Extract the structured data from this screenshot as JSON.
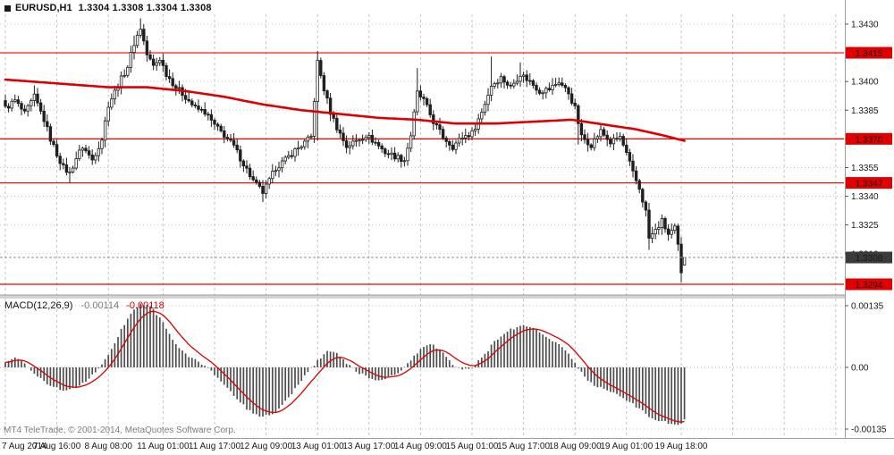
{
  "window": {
    "title": "EURUSD,H1",
    "ohlc": "1.3304 1.3308 1.3304 1.3308"
  },
  "indicator": {
    "label": "MACD(12,26,9)",
    "value_main": "-0.00114",
    "value_signal": "-0.00118"
  },
  "footer": {
    "copyright": "MT4 TeleTrade, © 2001-2014, MetaQuotes Software Corp."
  },
  "colors": {
    "background": "#ffffff",
    "grid": "#c4c4c4",
    "bull": "#ffffff",
    "bear": "#1f1f1f",
    "candle_outline": "#1f1f1f",
    "ma_line": "#dd0000",
    "level_line": "#f40000",
    "level_badge": "#e00000",
    "current_price_badge": "#3a3a3a",
    "bid_line": "#909090",
    "macd_histogram": "#4d4d4d",
    "macd_signal": "#dd0000",
    "separator": "#9e9e9e",
    "axis_text": "#1a1a1a"
  },
  "chart_data": {
    "type": "candlestick",
    "symbol": "EURUSD",
    "timeframe": "H1",
    "title": "EURUSD,H1 1.3304 1.3308 1.3304 1.3308",
    "current_ohlc": {
      "open": 1.3304,
      "high": 1.3308,
      "low": 1.3304,
      "close": 1.3308
    },
    "price_axis_ticks": [
      "1.3430",
      "1.3415",
      "1.3400",
      "1.3385",
      "1.3370",
      "1.3355",
      "1.3340",
      "1.3325",
      "1.3310"
    ],
    "levels": [
      {
        "value": 1.3415,
        "label": "1.3415"
      },
      {
        "value": 1.337,
        "label": "1.3370"
      },
      {
        "value": 1.3347,
        "label": "1.3347"
      },
      {
        "value": 1.3294,
        "label": "1.3294"
      }
    ],
    "current_price": {
      "value": 1.3308,
      "label": "1.3308"
    },
    "time_ticks": [
      {
        "bar": 0,
        "label": "7 Aug 2014"
      },
      {
        "bar": 16,
        "label": "7 Aug 16:00"
      },
      {
        "bar": 32,
        "label": "8 Aug 08:00"
      },
      {
        "bar": 49,
        "label": "11 Aug 01:00"
      },
      {
        "bar": 65,
        "label": "11 Aug 17:00"
      },
      {
        "bar": 81,
        "label": "12 Aug 09:00"
      },
      {
        "bar": 97,
        "label": "13 Aug 01:00"
      },
      {
        "bar": 113,
        "label": "13 Aug 17:00"
      },
      {
        "bar": 129,
        "label": "14 Aug 09:00"
      },
      {
        "bar": 145,
        "label": "15 Aug 01:00"
      },
      {
        "bar": 161,
        "label": "15 Aug 17:00"
      },
      {
        "bar": 177,
        "label": "18 Aug 09:00"
      },
      {
        "bar": 193,
        "label": "19 Aug 01:00"
      },
      {
        "bar": 210,
        "label": "19 Aug 18:00"
      }
    ],
    "future_grid_bars": [
      226,
      242,
      258
    ],
    "bars_total": 212,
    "close_anchors": [
      [
        0,
        1.3386
      ],
      [
        3,
        1.339
      ],
      [
        6,
        1.3383
      ],
      [
        9,
        1.3392
      ],
      [
        12,
        1.338
      ],
      [
        14,
        1.337
      ],
      [
        16,
        1.3362
      ],
      [
        18,
        1.3355
      ],
      [
        20,
        1.3352
      ],
      [
        22,
        1.336
      ],
      [
        24,
        1.3366
      ],
      [
        27,
        1.3359
      ],
      [
        30,
        1.337
      ],
      [
        32,
        1.3388
      ],
      [
        35,
        1.3398
      ],
      [
        38,
        1.3408
      ],
      [
        40,
        1.342
      ],
      [
        42,
        1.3428
      ],
      [
        44,
        1.3414
      ],
      [
        46,
        1.3408
      ],
      [
        48,
        1.3412
      ],
      [
        50,
        1.3404
      ],
      [
        53,
        1.3397
      ],
      [
        56,
        1.3392
      ],
      [
        59,
        1.3386
      ],
      [
        62,
        1.3384
      ],
      [
        65,
        1.3377
      ],
      [
        68,
        1.3372
      ],
      [
        71,
        1.3366
      ],
      [
        74,
        1.3357
      ],
      [
        77,
        1.3348
      ],
      [
        80,
        1.3342
      ],
      [
        82,
        1.3348
      ],
      [
        84,
        1.3355
      ],
      [
        87,
        1.3359
      ],
      [
        90,
        1.3364
      ],
      [
        93,
        1.3368
      ],
      [
        95,
        1.3371
      ],
      [
        97,
        1.341
      ],
      [
        99,
        1.3396
      ],
      [
        101,
        1.3384
      ],
      [
        103,
        1.3376
      ],
      [
        106,
        1.3366
      ],
      [
        109,
        1.3369
      ],
      [
        112,
        1.3372
      ],
      [
        115,
        1.3368
      ],
      [
        118,
        1.3363
      ],
      [
        121,
        1.3361
      ],
      [
        124,
        1.3359
      ],
      [
        126,
        1.3372
      ],
      [
        128,
        1.3394
      ],
      [
        130,
        1.339
      ],
      [
        133,
        1.3379
      ],
      [
        136,
        1.3371
      ],
      [
        139,
        1.3366
      ],
      [
        142,
        1.3371
      ],
      [
        145,
        1.3373
      ],
      [
        148,
        1.3384
      ],
      [
        151,
        1.3398
      ],
      [
        154,
        1.3402
      ],
      [
        157,
        1.3397
      ],
      [
        160,
        1.3404
      ],
      [
        163,
        1.34
      ],
      [
        166,
        1.3395
      ],
      [
        169,
        1.3396
      ],
      [
        172,
        1.34
      ],
      [
        175,
        1.3394
      ],
      [
        177,
        1.3386
      ],
      [
        179,
        1.3371
      ],
      [
        182,
        1.3367
      ],
      [
        185,
        1.3374
      ],
      [
        188,
        1.3368
      ],
      [
        191,
        1.3371
      ],
      [
        193,
        1.3362
      ],
      [
        195,
        1.3352
      ],
      [
        197,
        1.3344
      ],
      [
        199,
        1.3332
      ],
      [
        200,
        1.3318
      ],
      [
        202,
        1.3322
      ],
      [
        204,
        1.3327
      ],
      [
        206,
        1.332
      ],
      [
        208,
        1.3323
      ],
      [
        209,
        1.3314
      ],
      [
        210,
        1.33
      ],
      [
        211,
        1.3308
      ]
    ],
    "ma_anchors": [
      [
        0,
        1.3401
      ],
      [
        16,
        1.3399
      ],
      [
        32,
        1.3397
      ],
      [
        44,
        1.3397
      ],
      [
        56,
        1.3395
      ],
      [
        68,
        1.3392
      ],
      [
        80,
        1.3388
      ],
      [
        92,
        1.3385
      ],
      [
        104,
        1.3383
      ],
      [
        116,
        1.3381
      ],
      [
        128,
        1.338
      ],
      [
        140,
        1.3378
      ],
      [
        152,
        1.3378
      ],
      [
        164,
        1.3379
      ],
      [
        176,
        1.338
      ],
      [
        188,
        1.3377
      ],
      [
        196,
        1.3375
      ],
      [
        204,
        1.3372
      ],
      [
        211,
        1.3369
      ]
    ],
    "macd": {
      "axis_ticks": [
        {
          "value": 0.00135,
          "label": "0.00135"
        },
        {
          "value": 0,
          "label": "0.00"
        },
        {
          "value": -0.00135,
          "label": "-0.00135"
        }
      ],
      "current_main": -0.00114,
      "current_signal": -0.00118,
      "hist_anchors": [
        [
          0,
          0.00012
        ],
        [
          2,
          0.00018
        ],
        [
          4,
          0.0002
        ],
        [
          6,
          8e-05
        ],
        [
          8,
          -5e-05
        ],
        [
          10,
          -0.00018
        ],
        [
          12,
          -0.0003
        ],
        [
          14,
          -0.0004
        ],
        [
          16,
          -0.00046
        ],
        [
          18,
          -0.0005
        ],
        [
          20,
          -0.00048
        ],
        [
          22,
          -0.00042
        ],
        [
          24,
          -0.00036
        ],
        [
          26,
          -0.00024
        ],
        [
          28,
          -0.00012
        ],
        [
          30,
          6e-05
        ],
        [
          32,
          0.00028
        ],
        [
          34,
          0.00055
        ],
        [
          36,
          0.00082
        ],
        [
          38,
          0.00108
        ],
        [
          40,
          0.00128
        ],
        [
          42,
          0.0014
        ],
        [
          44,
          0.00138
        ],
        [
          46,
          0.00126
        ],
        [
          48,
          0.00108
        ],
        [
          50,
          0.00086
        ],
        [
          52,
          0.00062
        ],
        [
          54,
          0.00042
        ],
        [
          56,
          0.00028
        ],
        [
          58,
          0.0002
        ],
        [
          60,
          0.00012
        ],
        [
          62,
          4e-05
        ],
        [
          64,
          -8e-05
        ],
        [
          66,
          -0.00022
        ],
        [
          68,
          -0.00038
        ],
        [
          70,
          -0.00055
        ],
        [
          72,
          -0.0007
        ],
        [
          74,
          -0.00084
        ],
        [
          76,
          -0.00096
        ],
        [
          78,
          -0.00104
        ],
        [
          80,
          -0.00108
        ],
        [
          82,
          -0.00106
        ],
        [
          84,
          -0.00098
        ],
        [
          86,
          -0.00084
        ],
        [
          88,
          -0.00066
        ],
        [
          90,
          -0.00046
        ],
        [
          92,
          -0.00028
        ],
        [
          94,
          -0.00012
        ],
        [
          96,
          5e-05
        ],
        [
          98,
          0.00022
        ],
        [
          100,
          0.00036
        ],
        [
          102,
          0.00034
        ],
        [
          104,
          0.00024
        ],
        [
          106,
          0.0001
        ],
        [
          108,
          -2e-05
        ],
        [
          110,
          -0.00012
        ],
        [
          112,
          -0.0002
        ],
        [
          114,
          -0.00026
        ],
        [
          116,
          -0.00028
        ],
        [
          118,
          -0.00024
        ],
        [
          120,
          -0.00018
        ],
        [
          122,
          -0.0001
        ],
        [
          124,
          0.0
        ],
        [
          126,
          0.00014
        ],
        [
          128,
          0.00032
        ],
        [
          130,
          0.00046
        ],
        [
          132,
          0.0005
        ],
        [
          134,
          0.00044
        ],
        [
          136,
          0.0003
        ],
        [
          138,
          0.00014
        ],
        [
          140,
          2e-05
        ],
        [
          142,
          -6e-05
        ],
        [
          144,
          -4e-05
        ],
        [
          146,
          6e-05
        ],
        [
          148,
          0.0002
        ],
        [
          150,
          0.00038
        ],
        [
          152,
          0.00056
        ],
        [
          154,
          0.0007
        ],
        [
          156,
          0.0008
        ],
        [
          158,
          0.00086
        ],
        [
          160,
          0.0009
        ],
        [
          162,
          0.0009
        ],
        [
          164,
          0.00086
        ],
        [
          166,
          0.00078
        ],
        [
          168,
          0.00068
        ],
        [
          170,
          0.00058
        ],
        [
          172,
          0.00048
        ],
        [
          174,
          0.00036
        ],
        [
          176,
          0.0002
        ],
        [
          178,
          0.0
        ],
        [
          180,
          -0.0002
        ],
        [
          182,
          -0.00034
        ],
        [
          184,
          -0.00042
        ],
        [
          186,
          -0.00048
        ],
        [
          188,
          -0.00052
        ],
        [
          190,
          -0.00058
        ],
        [
          192,
          -0.00066
        ],
        [
          194,
          -0.00076
        ],
        [
          196,
          -0.00086
        ],
        [
          198,
          -0.00096
        ],
        [
          200,
          -0.00106
        ],
        [
          202,
          -0.00113
        ],
        [
          204,
          -0.00118
        ],
        [
          206,
          -0.00122
        ],
        [
          208,
          -0.00124
        ],
        [
          209,
          -0.00125
        ],
        [
          210,
          -0.00122
        ],
        [
          211,
          -0.00114
        ]
      ]
    },
    "spikes": [
      {
        "i": 9,
        "h": 1.3398
      },
      {
        "i": 20,
        "l": 1.3347
      },
      {
        "i": 40,
        "h": 1.3424
      },
      {
        "i": 42,
        "h": 1.3433
      },
      {
        "i": 80,
        "l": 1.3337
      },
      {
        "i": 97,
        "h": 1.3416,
        "l": 1.3369
      },
      {
        "i": 128,
        "h": 1.3407
      },
      {
        "i": 151,
        "h": 1.3413
      },
      {
        "i": 160,
        "h": 1.341
      },
      {
        "i": 178,
        "l": 1.3367
      },
      {
        "i": 200,
        "l": 1.3312
      },
      {
        "i": 210,
        "l": 1.3295
      }
    ]
  }
}
